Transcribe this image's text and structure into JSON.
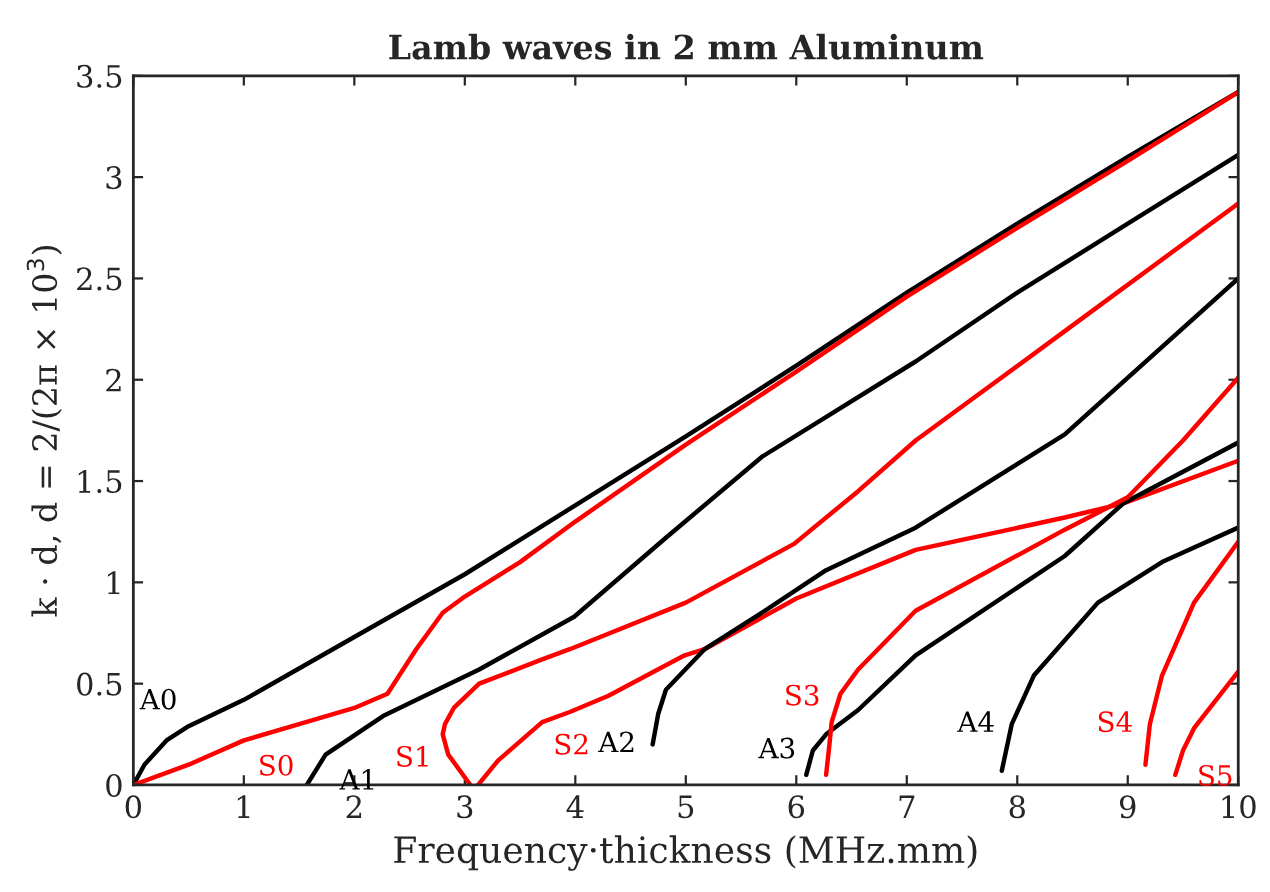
{
  "chart_data": {
    "type": "line",
    "title": "Lamb waves in 2 mm Aluminum",
    "xlabel": "Frequency·thickness (MHz.mm)",
    "ylabel": "k · d, d = 2/(2π × 10$^{3}$)",
    "xlim": [
      0,
      10
    ],
    "ylim": [
      0,
      3.5
    ],
    "xticks": [
      0,
      1,
      2,
      3,
      4,
      5,
      6,
      7,
      8,
      9,
      10
    ],
    "yticks": [
      0,
      0.5,
      1,
      1.5,
      2,
      2.5,
      3,
      3.5
    ],
    "grid": false,
    "legend": false,
    "marker": "none",
    "line_style": "solid",
    "series": [
      {
        "name": "A0",
        "color": "#000000",
        "x": [
          0,
          0.1,
          0.3,
          0.5,
          1,
          2,
          3,
          4,
          5,
          6,
          7,
          8,
          9,
          10
        ],
        "values": [
          0,
          0.1,
          0.22,
          0.29,
          0.42,
          0.73,
          1.04,
          1.38,
          1.72,
          2.07,
          2.43,
          2.77,
          3.1,
          3.42
        ]
      },
      {
        "name": "S0",
        "color": "#ff0000",
        "x": [
          0,
          0.5,
          1,
          1.5,
          2,
          2.3,
          2.56,
          2.8,
          3,
          3.5,
          4,
          5,
          6,
          7,
          8,
          9,
          10
        ],
        "values": [
          0,
          0.1,
          0.22,
          0.3,
          0.38,
          0.45,
          0.67,
          0.85,
          0.93,
          1.1,
          1.3,
          1.68,
          2.04,
          2.41,
          2.75,
          3.08,
          3.42
        ]
      },
      {
        "name": "A1",
        "color": "#000000",
        "x": [
          1.57,
          1.74,
          2.26,
          3.13,
          3.99,
          4.82,
          5.69,
          7.08,
          8,
          9,
          10
        ],
        "values": [
          0,
          0.15,
          0.34,
          0.57,
          0.83,
          1.22,
          1.62,
          2.09,
          2.43,
          2.77,
          3.11
        ]
      },
      {
        "name": "S1",
        "color": "#ff0000",
        "x": [
          3.05,
          2.85,
          2.8,
          2.82,
          2.9,
          3.13,
          3.7,
          3.95,
          5,
          5.98,
          6.56,
          7.08,
          8.43,
          10
        ],
        "values": [
          0,
          0.15,
          0.25,
          0.3,
          0.38,
          0.5,
          0.62,
          0.67,
          0.9,
          1.19,
          1.45,
          1.7,
          2.24,
          2.87
        ]
      },
      {
        "name": "S2",
        "color": "#ff0000",
        "x": [
          3.12,
          3.3,
          3.7,
          3.95,
          4.3,
          4.99,
          5.17,
          6,
          7.08,
          8.43,
          8.96,
          10
        ],
        "values": [
          0,
          0.12,
          0.31,
          0.36,
          0.44,
          0.64,
          0.67,
          0.92,
          1.16,
          1.32,
          1.39,
          1.6
        ]
      },
      {
        "name": "A2",
        "color": "#000000",
        "x": [
          4.7,
          4.75,
          4.82,
          5.17,
          5.69,
          6.27,
          7.08,
          8.43,
          10
        ],
        "values": [
          0.2,
          0.35,
          0.47,
          0.67,
          0.85,
          1.06,
          1.27,
          1.73,
          2.5
        ]
      },
      {
        "name": "A3",
        "color": "#000000",
        "x": [
          6.09,
          6.15,
          6.27,
          6.56,
          7.08,
          8.43,
          8.96,
          10
        ],
        "values": [
          0.05,
          0.17,
          0.25,
          0.37,
          0.64,
          1.13,
          1.39,
          1.69
        ]
      },
      {
        "name": "S3",
        "color": "#ff0000",
        "x": [
          6.27,
          6.3,
          6.32,
          6.4,
          6.56,
          7.08,
          8.43,
          9,
          9.5,
          10
        ],
        "values": [
          0.05,
          0.2,
          0.31,
          0.45,
          0.57,
          0.86,
          1.26,
          1.42,
          1.7,
          2.01
        ]
      },
      {
        "name": "A4",
        "color": "#000000",
        "x": [
          7.86,
          7.95,
          8.15,
          8.73,
          9.31,
          10
        ],
        "values": [
          0.07,
          0.3,
          0.54,
          0.9,
          1.1,
          1.27
        ]
      },
      {
        "name": "S4",
        "color": "#ff0000",
        "x": [
          9.16,
          9.2,
          9.31,
          9.6,
          10
        ],
        "values": [
          0.1,
          0.3,
          0.54,
          0.9,
          1.2
        ]
      },
      {
        "name": "S5",
        "color": "#ff0000",
        "x": [
          9.43,
          9.5,
          9.6,
          10
        ],
        "values": [
          0.05,
          0.17,
          0.28,
          0.56
        ]
      }
    ]
  }
}
